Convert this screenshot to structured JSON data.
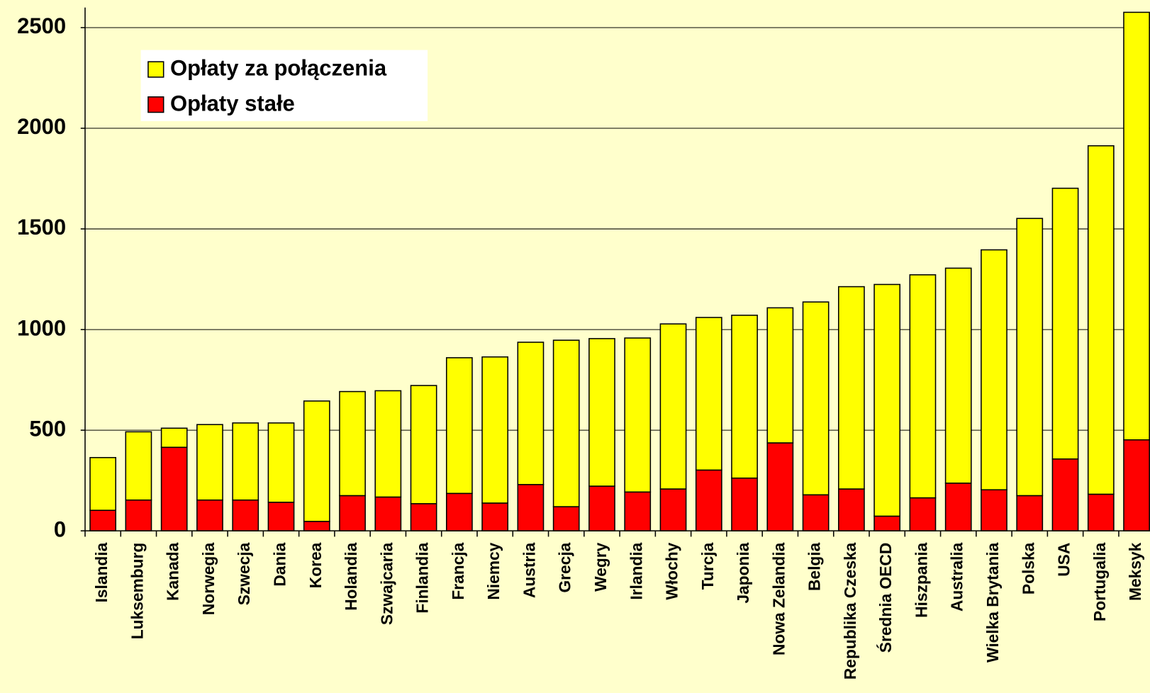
{
  "chart_data": {
    "type": "stacked_bar",
    "categories": [
      "Islandia",
      "Luksemburg",
      "Kanada",
      "Norwegia",
      "Szwecja",
      "Dania",
      "Korea",
      "Holandia",
      "Szwajcaria",
      "Finlandia",
      "Francja",
      "Niemcy",
      "Austria",
      "Grecja",
      "Wegry",
      "Irlandia",
      "Włochy",
      "Turcja",
      "Japonia",
      "Nowa Zelandia",
      "Belgia",
      "Republika Czeska",
      "Średnia OECD",
      "Hiszpania",
      "Australia",
      "Wielka Brytania",
      "Polska",
      "USA",
      "Portugalia",
      "Meksyk"
    ],
    "series": [
      {
        "name": "Opłaty stałe",
        "color": "#ff0000",
        "values": [
          102,
          153,
          415,
          153,
          153,
          142,
          47,
          175,
          168,
          135,
          186,
          138,
          230,
          120,
          222,
          193,
          208,
          302,
          262,
          437,
          179,
          208,
          73,
          164,
          237,
          204,
          175,
          357,
          182,
          452
        ]
      },
      {
        "name": "Opłaty za połączenia",
        "color": "#ffff00",
        "values": [
          262,
          339,
          95,
          375,
          383,
          394,
          598,
          517,
          528,
          587,
          674,
          726,
          707,
          827,
          733,
          765,
          820,
          758,
          809,
          671,
          958,
          1005,
          1151,
          1108,
          1068,
          1192,
          1377,
          1345,
          1731,
          2124
        ]
      }
    ],
    "ylim": [
      0,
      2600
    ],
    "yticks": [
      0,
      500,
      1000,
      1500,
      2000,
      2500
    ],
    "grid": true
  }
}
